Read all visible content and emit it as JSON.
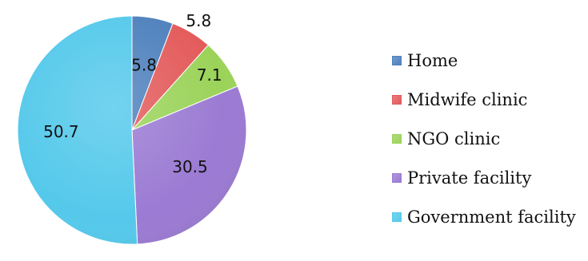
{
  "chart_data": {
    "type": "pie",
    "categories": [
      "Home",
      "Midwife clinic",
      "NGO clinic",
      "Private facility",
      "Government facility"
    ],
    "values": [
      5.8,
      5.8,
      7.1,
      30.5,
      50.7
    ],
    "data_labels": [
      "5.8",
      "5.8",
      "7.1",
      "30.5",
      "50.7"
    ],
    "colors": [
      "#4f81bd",
      "#e35b5b",
      "#9bd35a",
      "#9b7bd3",
      "#55c9eb"
    ],
    "start": "12 o'clock",
    "direction": "clockwise",
    "legend_position": "right"
  }
}
